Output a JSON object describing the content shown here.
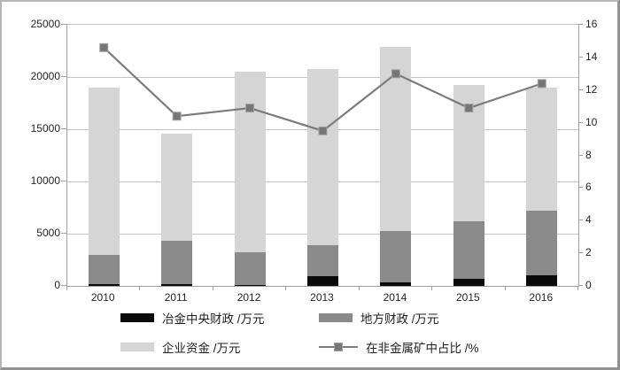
{
  "chart_data": {
    "type": "bar",
    "subtype": "stacked-bars-with-line-overlay",
    "title": "",
    "categories": [
      "2010",
      "2011",
      "2012",
      "2013",
      "2014",
      "2015",
      "2016"
    ],
    "series": [
      {
        "name": "冶金中央财政 /万元",
        "type": "bar-stack",
        "color": "#0a0a0a",
        "values": [
          200,
          200,
          100,
          900,
          350,
          650,
          1050
        ]
      },
      {
        "name": "地方财政 /万元",
        "type": "bar-stack",
        "color": "#8a8a8a",
        "values": [
          2800,
          4100,
          3100,
          3000,
          4900,
          5500,
          6150
        ]
      },
      {
        "name": "企业资金 /万元",
        "type": "bar-stack",
        "color": "#d5d5d5",
        "values": [
          16000,
          10300,
          17300,
          16900,
          17650,
          13050,
          11800
        ]
      },
      {
        "name": "在非金属矿中占比 /%",
        "type": "line",
        "axis": "right",
        "color": "#7c7c7c",
        "marker": "square",
        "marker_color": "#767676",
        "values": [
          14.6,
          10.4,
          10.9,
          9.5,
          13.0,
          10.9,
          12.4
        ]
      }
    ],
    "stack_totals": [
      19000,
      14600,
      20500,
      20800,
      22900,
      19200,
      19000
    ],
    "left_axis": {
      "min": 0,
      "max": 25000,
      "step": 5000,
      "tick_labels": [
        "0",
        "5000",
        "10000",
        "15000",
        "20000",
        "25000"
      ]
    },
    "right_axis": {
      "min": 0,
      "max": 16,
      "step": 2,
      "tick_labels": [
        "0",
        "2",
        "4",
        "6",
        "8",
        "10",
        "12",
        "14",
        "16"
      ]
    },
    "grid": true,
    "legend_position": "bottom"
  },
  "colors": {
    "background": "#ffffff",
    "gridline": "#c3c3c3",
    "axis_line": "#a0a0a0",
    "outer_border": "#929292",
    "text": "#262626"
  }
}
